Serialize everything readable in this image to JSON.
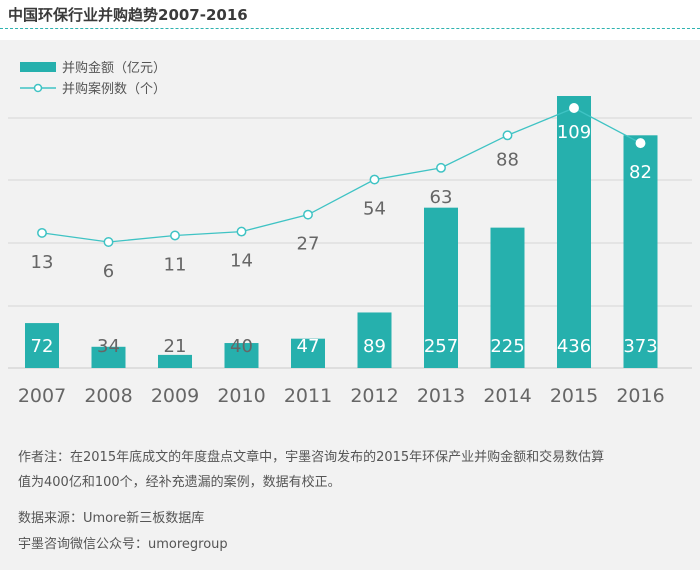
{
  "title": "中国环保行业并购趋势2007-2016",
  "colors": {
    "bar": "#26b0ad",
    "line": "#3fc3c4",
    "grid": "#d7d7d7",
    "label_dark": "#666666",
    "label_light": "#ffffff",
    "accent": "#2fb3b0"
  },
  "chart_data": {
    "type": "bar+line",
    "categories": [
      "2007",
      "2008",
      "2009",
      "2010",
      "2011",
      "2012",
      "2013",
      "2014",
      "2015",
      "2016"
    ],
    "series": [
      {
        "name": "并购金额（亿元）",
        "type": "bar",
        "values": [
          72,
          34,
          21,
          40,
          47,
          89,
          257,
          225,
          436,
          373
        ]
      },
      {
        "name": "并购案例数（个）",
        "type": "line",
        "values": [
          13,
          6,
          11,
          14,
          27,
          54,
          63,
          88,
          109,
          82
        ]
      }
    ],
    "legend_position": "top-left",
    "grid": true
  },
  "notes": {
    "line1": "作者注：在2015年底成文的年度盘点文章中，宇墨咨询发布的2015年环保产业并购金额和交易数估算",
    "line2": "值为400亿和100个，经补充遗漏的案例，数据有校正。",
    "source": "数据来源：Umore新三板数据库",
    "wechat": "宇墨咨询微信公众号：umoregroup"
  }
}
